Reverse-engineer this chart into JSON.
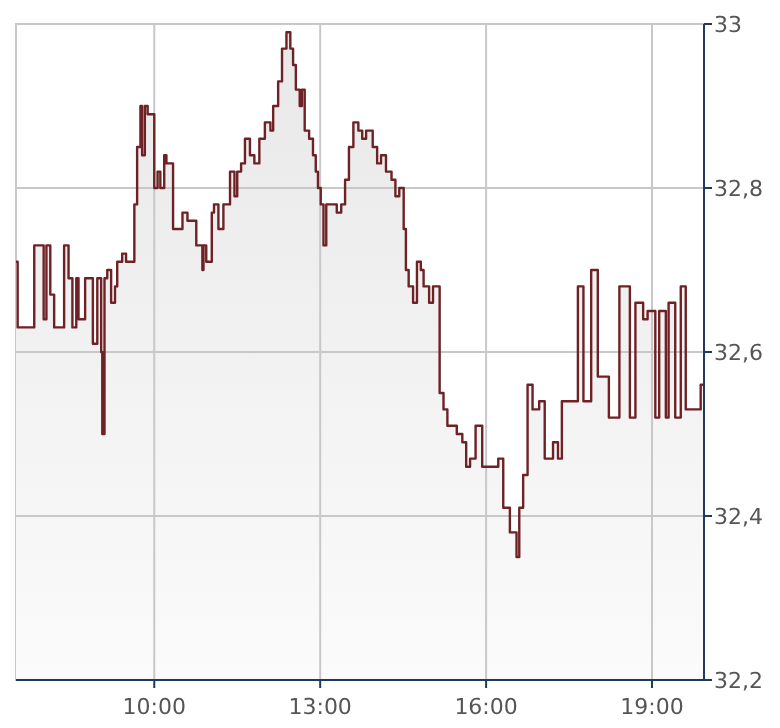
{
  "chart_data": {
    "type": "area",
    "xlim": [
      7.5,
      19.94
    ],
    "ylim": [
      32.2,
      33
    ],
    "xticks": [
      {
        "value": 10,
        "label": "10:00"
      },
      {
        "value": 13,
        "label": "13:00"
      },
      {
        "value": 16,
        "label": "16:00"
      },
      {
        "value": 19,
        "label": "19:00"
      }
    ],
    "yticks": [
      {
        "value": 32.2,
        "label": "32,2"
      },
      {
        "value": 32.4,
        "label": "32,4"
      },
      {
        "value": 32.6,
        "label": "32,6"
      },
      {
        "value": 32.8,
        "label": "32,8"
      },
      33
    ],
    "grid": true,
    "marker": "none",
    "x": [
      7.5,
      7.53,
      7.53,
      7.83,
      7.83,
      8.0,
      8.0,
      8.05,
      8.05,
      8.12,
      8.12,
      8.19,
      8.19,
      8.37,
      8.37,
      8.45,
      8.45,
      8.52,
      8.52,
      8.59,
      8.59,
      8.63,
      8.63,
      8.75,
      8.75,
      8.89,
      8.89,
      8.97,
      8.97,
      9.04,
      9.04,
      9.06,
      9.06,
      9.1,
      9.1,
      9.15,
      9.15,
      9.22,
      9.22,
      9.29,
      9.29,
      9.33,
      9.33,
      9.42,
      9.42,
      9.49,
      9.49,
      9.64,
      9.64,
      9.69,
      9.69,
      9.75,
      9.75,
      9.78,
      9.78,
      9.83,
      9.83,
      9.88,
      9.88,
      10.0,
      10.0,
      10.06,
      10.06,
      10.11,
      10.11,
      10.18,
      10.18,
      10.22,
      10.22,
      10.34,
      10.34,
      10.51,
      10.51,
      10.6,
      10.6,
      10.76,
      10.76,
      10.87,
      10.87,
      10.89,
      10.89,
      10.94,
      10.94,
      11.04,
      11.04,
      11.08,
      11.08,
      11.16,
      11.16,
      11.25,
      11.25,
      11.37,
      11.37,
      11.45,
      11.45,
      11.5,
      11.5,
      11.57,
      11.57,
      11.64,
      11.64,
      11.73,
      11.73,
      11.81,
      11.81,
      11.9,
      11.9,
      12.0,
      12.0,
      12.1,
      12.1,
      12.15,
      12.15,
      12.24,
      12.24,
      12.31,
      12.31,
      12.39,
      12.39,
      12.46,
      12.46,
      12.51,
      12.51,
      12.56,
      12.56,
      12.63,
      12.63,
      12.67,
      12.67,
      12.72,
      12.72,
      12.8,
      12.8,
      12.87,
      12.87,
      12.92,
      12.92,
      12.96,
      12.96,
      13.01,
      13.01,
      13.06,
      13.06,
      13.11,
      13.11,
      13.3,
      13.3,
      13.38,
      13.38,
      13.45,
      13.45,
      13.52,
      13.52,
      13.6,
      13.6,
      13.69,
      13.69,
      13.76,
      13.76,
      13.83,
      13.83,
      13.95,
      13.95,
      14.03,
      14.03,
      14.1,
      14.1,
      14.19,
      14.19,
      14.29,
      14.29,
      14.36,
      14.36,
      14.43,
      14.43,
      14.51,
      14.51,
      14.55,
      14.55,
      14.6,
      14.6,
      14.68,
      14.68,
      14.75,
      14.75,
      14.82,
      14.82,
      14.87,
      14.87,
      14.97,
      14.97,
      15.04,
      15.04,
      15.16,
      15.16,
      15.23,
      15.23,
      15.3,
      15.3,
      15.47,
      15.47,
      15.57,
      15.57,
      15.64,
      15.64,
      15.71,
      15.71,
      15.81,
      15.81,
      15.93,
      15.93,
      16.22,
      16.22,
      16.31,
      16.31,
      16.43,
      16.43,
      16.55,
      16.55,
      16.6,
      16.6,
      16.67,
      16.67,
      16.75,
      16.75,
      16.84,
      16.84,
      16.96,
      16.96,
      17.06,
      17.06,
      17.21,
      17.21,
      17.3,
      17.3,
      17.37,
      17.37,
      17.66,
      17.66,
      17.76,
      17.76,
      17.9,
      17.9,
      18.02,
      18.02,
      18.22,
      18.22,
      18.41,
      18.41,
      18.6,
      18.6,
      18.7,
      18.7,
      18.84,
      18.84,
      18.92,
      18.92,
      19.06,
      19.06,
      19.13,
      19.13,
      19.25,
      19.25,
      19.3,
      19.3,
      19.42,
      19.42,
      19.52,
      19.52,
      19.61,
      19.61,
      19.88,
      19.88,
      19.94
    ],
    "series": [
      {
        "color": "#6e2226",
        "values": [
          32.71,
          32.71,
          32.63,
          32.63,
          32.73,
          32.73,
          32.64,
          32.64,
          32.73,
          32.73,
          32.67,
          32.67,
          32.63,
          32.63,
          32.73,
          32.73,
          32.69,
          32.69,
          32.63,
          32.63,
          32.69,
          32.69,
          32.64,
          32.64,
          32.69,
          32.69,
          32.61,
          32.61,
          32.69,
          32.69,
          32.6,
          32.6,
          32.5,
          32.5,
          32.69,
          32.69,
          32.7,
          32.7,
          32.66,
          32.66,
          32.68,
          32.68,
          32.71,
          32.71,
          32.72,
          32.72,
          32.71,
          32.71,
          32.78,
          32.78,
          32.85,
          32.85,
          32.9,
          32.9,
          32.84,
          32.84,
          32.9,
          32.9,
          32.89,
          32.89,
          32.8,
          32.8,
          32.82,
          32.82,
          32.8,
          32.8,
          32.84,
          32.84,
          32.83,
          32.83,
          32.75,
          32.75,
          32.77,
          32.77,
          32.76,
          32.76,
          32.73,
          32.73,
          32.7,
          32.7,
          32.73,
          32.73,
          32.71,
          32.71,
          32.77,
          32.77,
          32.78,
          32.78,
          32.75,
          32.75,
          32.78,
          32.78,
          32.82,
          32.82,
          32.79,
          32.79,
          32.82,
          32.82,
          32.83,
          32.83,
          32.86,
          32.86,
          32.84,
          32.84,
          32.83,
          32.83,
          32.86,
          32.86,
          32.88,
          32.88,
          32.87,
          32.87,
          32.9,
          32.9,
          32.93,
          32.93,
          32.97,
          32.97,
          32.99,
          32.99,
          32.97,
          32.97,
          32.95,
          32.95,
          32.92,
          32.92,
          32.9,
          32.9,
          32.92,
          32.92,
          32.87,
          32.87,
          32.86,
          32.86,
          32.84,
          32.84,
          32.82,
          32.82,
          32.8,
          32.8,
          32.78,
          32.78,
          32.73,
          32.73,
          32.78,
          32.78,
          32.77,
          32.77,
          32.78,
          32.78,
          32.81,
          32.81,
          32.85,
          32.85,
          32.88,
          32.88,
          32.87,
          32.87,
          32.86,
          32.86,
          32.87,
          32.87,
          32.85,
          32.85,
          32.83,
          32.83,
          32.84,
          32.84,
          32.82,
          32.82,
          32.81,
          32.81,
          32.79,
          32.79,
          32.8,
          32.8,
          32.75,
          32.75,
          32.7,
          32.7,
          32.68,
          32.68,
          32.66,
          32.66,
          32.71,
          32.71,
          32.7,
          32.7,
          32.68,
          32.68,
          32.66,
          32.66,
          32.68,
          32.68,
          32.55,
          32.55,
          32.53,
          32.53,
          32.51,
          32.51,
          32.5,
          32.5,
          32.49,
          32.49,
          32.46,
          32.46,
          32.47,
          32.47,
          32.51,
          32.51,
          32.46,
          32.46,
          32.47,
          32.47,
          32.41,
          32.41,
          32.38,
          32.38,
          32.35,
          32.35,
          32.41,
          32.41,
          32.45,
          32.45,
          32.56,
          32.56,
          32.53,
          32.53,
          32.54,
          32.54,
          32.47,
          32.47,
          32.49,
          32.49,
          32.47,
          32.47,
          32.54,
          32.54,
          32.68,
          32.68,
          32.54,
          32.54,
          32.7,
          32.7,
          32.57,
          32.57,
          32.52,
          32.52,
          32.68,
          32.68,
          32.52,
          32.52,
          32.66,
          32.66,
          32.64,
          32.64,
          32.65,
          32.65,
          32.52,
          32.52,
          32.65,
          32.65,
          32.52,
          32.52,
          32.66,
          32.66,
          32.52,
          32.52,
          32.68,
          32.68,
          32.53,
          32.53,
          32.56,
          32.56
        ]
      }
    ]
  }
}
